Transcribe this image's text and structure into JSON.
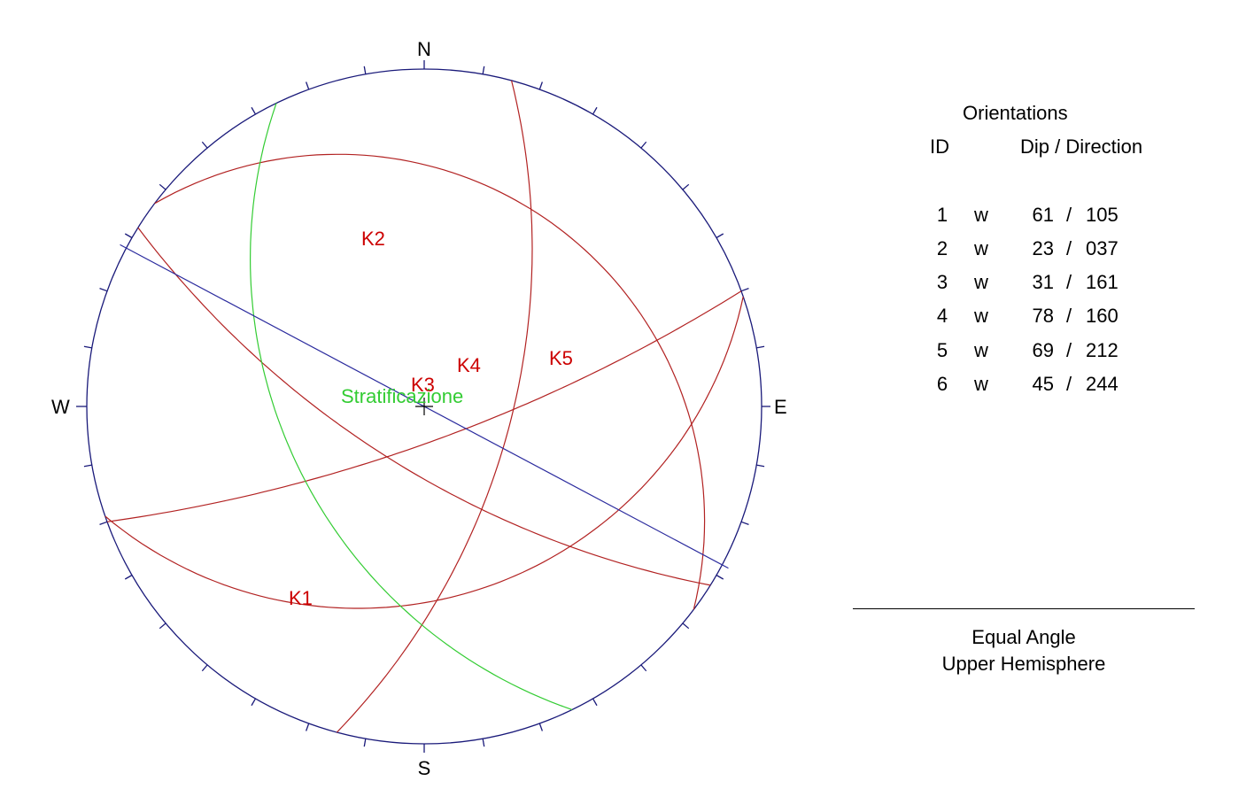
{
  "stereonet": {
    "compass": {
      "north": "N",
      "south": "S",
      "east": "E",
      "west": "W"
    },
    "colors": {
      "circle": "#1a1a7a",
      "joints": "#b22222",
      "bedding": "#33cc33",
      "trend_line": "#2b2b9e",
      "labels_red": "#cc0000"
    },
    "planes": [
      {
        "label": "K1",
        "dip": 61,
        "dip_direction": 105,
        "color": "#b22222"
      },
      {
        "label": "K2",
        "dip": 23,
        "dip_direction": 37,
        "color": "#b22222"
      },
      {
        "label": "K3",
        "dip": 31,
        "dip_direction": 161,
        "color": "#b22222"
      },
      {
        "label": "K4",
        "dip": 78,
        "dip_direction": 160,
        "color": "#b22222"
      },
      {
        "label": "K5",
        "dip": 69,
        "dip_direction": 212,
        "color": "#b22222"
      },
      {
        "label": "Stratificazione",
        "dip": 45,
        "dip_direction": 244,
        "color": "#33cc33"
      }
    ],
    "trend_line_azimuth": 118
  },
  "orientations": {
    "title": "Orientations",
    "header_id": "ID",
    "header_dip_dir": "Dip / Direction",
    "separator": "/",
    "rows": [
      {
        "id": "1",
        "mode": "w",
        "dip": "61",
        "direction": "105"
      },
      {
        "id": "2",
        "mode": "w",
        "dip": "23",
        "direction": "037"
      },
      {
        "id": "3",
        "mode": "w",
        "dip": "31",
        "direction": "161"
      },
      {
        "id": "4",
        "mode": "w",
        "dip": "78",
        "direction": "160"
      },
      {
        "id": "5",
        "mode": "w",
        "dip": "69",
        "direction": "212"
      },
      {
        "id": "6",
        "mode": "w",
        "dip": "45",
        "direction": "244"
      }
    ]
  },
  "projection": {
    "line1": "Equal Angle",
    "line2": "Upper Hemisphere"
  }
}
